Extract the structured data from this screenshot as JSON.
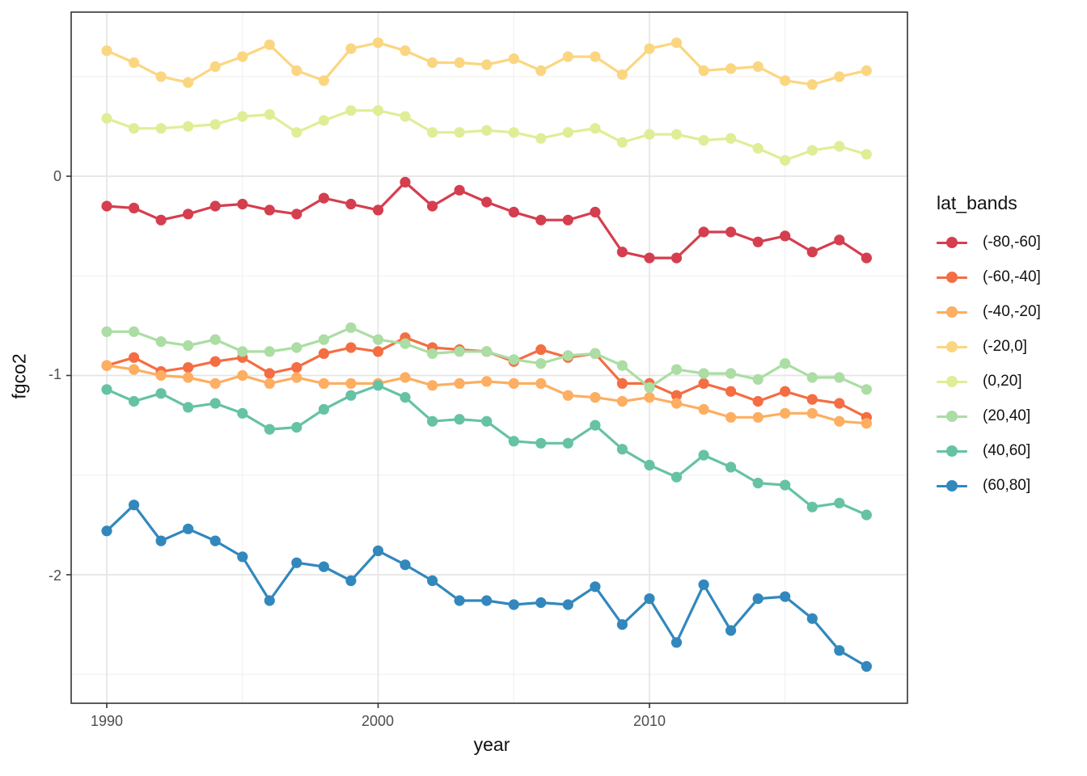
{
  "figure": {
    "x_axis": {
      "label": "year",
      "tick_labels": [
        "1990",
        "2000",
        "2010"
      ],
      "tick_values": [
        1990,
        2000,
        2010
      ],
      "minor_values": [
        1995,
        2005,
        2015
      ],
      "range": [
        1988.7,
        2019.5
      ]
    },
    "y_axis": {
      "label": "fgco2",
      "tick_labels": [
        "0",
        "-1",
        "-2"
      ],
      "tick_values": [
        0,
        -1,
        -2
      ],
      "minor_values": [
        0.5,
        -0.5,
        -1.5,
        -2.5
      ],
      "range": [
        -2.65,
        0.82
      ]
    },
    "grid": {
      "major_color": "#e5e5e5",
      "minor_color": "#f0f0f0",
      "panel_border": "#333333",
      "background": "#ffffff"
    }
  },
  "legend": {
    "title": "lat_bands"
  },
  "chart_data": {
    "type": "line",
    "title": "",
    "xlabel": "year",
    "ylabel": "fgco2",
    "legend_title": "lat_bands",
    "legend_position": "right",
    "grid": true,
    "xlim": [
      1988.7,
      2019.5
    ],
    "ylim": [
      -2.65,
      0.82
    ],
    "x": [
      1990,
      1991,
      1992,
      1993,
      1994,
      1995,
      1996,
      1997,
      1998,
      1999,
      2000,
      2001,
      2002,
      2003,
      2004,
      2005,
      2006,
      2007,
      2008,
      2009,
      2010,
      2011,
      2012,
      2013,
      2014,
      2015,
      2016,
      2017,
      2018
    ],
    "series": [
      {
        "name": "(-80,-60]",
        "color": "#d53e4f",
        "values": [
          -0.15,
          -0.16,
          -0.22,
          -0.19,
          -0.15,
          -0.14,
          -0.17,
          -0.19,
          -0.11,
          -0.14,
          -0.17,
          -0.03,
          -0.15,
          -0.07,
          -0.13,
          -0.18,
          -0.22,
          -0.22,
          -0.18,
          -0.38,
          -0.41,
          -0.41,
          -0.28,
          -0.28,
          -0.33,
          -0.3,
          -0.38,
          -0.32,
          -0.41
        ]
      },
      {
        "name": "(-60,-40]",
        "color": "#f46d43",
        "values": [
          -0.95,
          -0.91,
          -0.98,
          -0.96,
          -0.93,
          -0.91,
          -0.99,
          -0.96,
          -0.89,
          -0.86,
          -0.88,
          -0.81,
          -0.86,
          -0.87,
          -0.88,
          -0.93,
          -0.87,
          -0.91,
          -0.89,
          -1.04,
          -1.04,
          -1.1,
          -1.04,
          -1.08,
          -1.13,
          -1.08,
          -1.12,
          -1.14,
          -1.21
        ]
      },
      {
        "name": "(-40,-20]",
        "color": "#fdae61",
        "values": [
          -0.95,
          -0.97,
          -1.0,
          -1.01,
          -1.04,
          -1.0,
          -1.04,
          -1.01,
          -1.04,
          -1.04,
          -1.04,
          -1.01,
          -1.05,
          -1.04,
          -1.03,
          -1.04,
          -1.04,
          -1.1,
          -1.11,
          -1.13,
          -1.11,
          -1.14,
          -1.17,
          -1.21,
          -1.21,
          -1.19,
          -1.19,
          -1.23,
          -1.24
        ]
      },
      {
        "name": "(-20,0]",
        "color": "#fbd681",
        "values": [
          0.63,
          0.57,
          0.5,
          0.47,
          0.55,
          0.6,
          0.66,
          0.53,
          0.48,
          0.64,
          0.67,
          0.63,
          0.57,
          0.57,
          0.56,
          0.59,
          0.53,
          0.6,
          0.6,
          0.51,
          0.64,
          0.67,
          0.53,
          0.54,
          0.55,
          0.48,
          0.46,
          0.5,
          0.53
        ]
      },
      {
        "name": "(0,20]",
        "color": "#dfee96",
        "values": [
          0.29,
          0.24,
          0.24,
          0.25,
          0.26,
          0.3,
          0.31,
          0.22,
          0.28,
          0.33,
          0.33,
          0.3,
          0.22,
          0.22,
          0.23,
          0.22,
          0.19,
          0.22,
          0.24,
          0.17,
          0.21,
          0.21,
          0.18,
          0.19,
          0.14,
          0.08,
          0.13,
          0.15,
          0.11
        ]
      },
      {
        "name": "(20,40]",
        "color": "#abdda4",
        "values": [
          -0.78,
          -0.78,
          -0.83,
          -0.85,
          -0.82,
          -0.88,
          -0.88,
          -0.86,
          -0.82,
          -0.76,
          -0.82,
          -0.84,
          -0.89,
          -0.88,
          -0.88,
          -0.92,
          -0.94,
          -0.9,
          -0.89,
          -0.95,
          -1.06,
          -0.97,
          -0.99,
          -0.99,
          -1.02,
          -0.94,
          -1.01,
          -1.01,
          -1.07
        ]
      },
      {
        "name": "(40,60]",
        "color": "#66c2a5",
        "values": [
          -1.07,
          -1.13,
          -1.09,
          -1.16,
          -1.14,
          -1.19,
          -1.27,
          -1.26,
          -1.17,
          -1.1,
          -1.05,
          -1.11,
          -1.23,
          -1.22,
          -1.23,
          -1.33,
          -1.34,
          -1.34,
          -1.25,
          -1.37,
          -1.45,
          -1.51,
          -1.4,
          -1.46,
          -1.54,
          -1.55,
          -1.66,
          -1.64,
          -1.7
        ]
      },
      {
        "name": "(60,80]",
        "color": "#3288bd",
        "values": [
          -1.78,
          -1.65,
          -1.83,
          -1.77,
          -1.83,
          -1.91,
          -2.13,
          -1.94,
          -1.96,
          -2.03,
          -1.88,
          -1.95,
          -2.03,
          -2.13,
          -2.13,
          -2.15,
          -2.14,
          -2.15,
          -2.06,
          -2.25,
          -2.12,
          -2.34,
          -2.05,
          -2.28,
          -2.12,
          -2.11,
          -2.22,
          -2.38,
          -2.46
        ]
      }
    ]
  }
}
